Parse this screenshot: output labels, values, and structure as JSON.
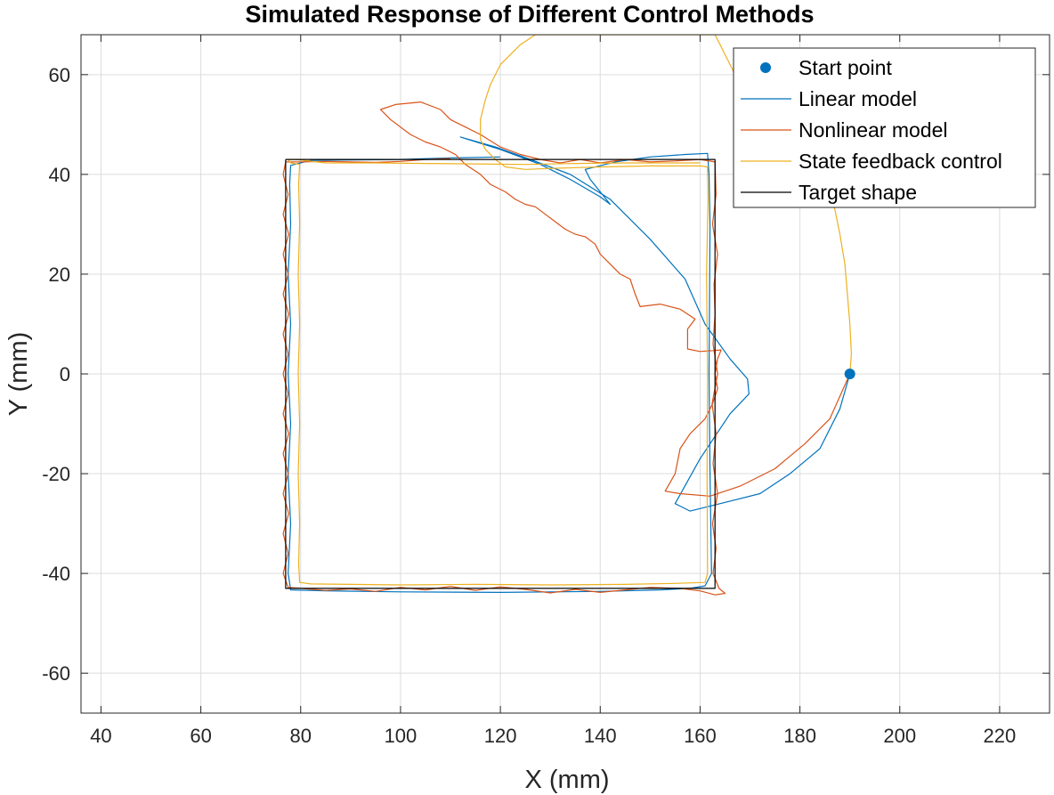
{
  "chart_data": {
    "type": "line",
    "title": "Simulated Response of Different Control Methods",
    "xlabel": "X (mm)",
    "ylabel": "Y (mm)",
    "xlim": [
      36,
      230
    ],
    "ylim": [
      -68,
      68
    ],
    "xticks": [
      40,
      60,
      80,
      100,
      120,
      140,
      160,
      180,
      200,
      220
    ],
    "yticks": [
      -60,
      -40,
      -20,
      0,
      20,
      40,
      60
    ],
    "grid": true,
    "legend_position": "top-right",
    "legend": [
      {
        "name": "Start point",
        "color": "#0072BD",
        "marker": "dot"
      },
      {
        "name": "Linear model",
        "color": "#0072BD",
        "marker": "line"
      },
      {
        "name": "Nonlinear model",
        "color": "#D95319",
        "marker": "line"
      },
      {
        "name": "State feedback control",
        "color": "#EDB120",
        "marker": "line"
      },
      {
        "name": "Target shape",
        "color": "#000000",
        "marker": "line"
      }
    ],
    "start_point": {
      "x": 190,
      "y": 0
    },
    "series": [
      {
        "name": "Linear model",
        "color": "#0072BD",
        "points": [
          [
            190,
            0
          ],
          [
            188,
            -7
          ],
          [
            184,
            -15
          ],
          [
            178,
            -20
          ],
          [
            172,
            -24
          ],
          [
            166,
            -25.5
          ],
          [
            158,
            -27.5
          ],
          [
            155,
            -26
          ],
          [
            160,
            -17
          ],
          [
            166,
            -8
          ],
          [
            169.8,
            -4
          ],
          [
            169.5,
            -1
          ],
          [
            166,
            3
          ],
          [
            161,
            10
          ],
          [
            157,
            19
          ],
          [
            150,
            27
          ],
          [
            142,
            35
          ],
          [
            134,
            40
          ],
          [
            126,
            43
          ],
          [
            119,
            45.5
          ],
          [
            112,
            47.5
          ],
          [
            120,
            45
          ],
          [
            128,
            42
          ],
          [
            134,
            39
          ],
          [
            140,
            35.5
          ],
          [
            142,
            34
          ],
          [
            138,
            39
          ],
          [
            137,
            41
          ],
          [
            143,
            42.5
          ],
          [
            150,
            43.5
          ],
          [
            157,
            44
          ],
          [
            161.5,
            44.2
          ],
          [
            161.8,
            40
          ],
          [
            162,
            30
          ],
          [
            161.8,
            0
          ],
          [
            162,
            -20
          ],
          [
            162.3,
            -40
          ],
          [
            161,
            -42.5
          ],
          [
            158,
            -43
          ],
          [
            152,
            -43.3
          ],
          [
            140,
            -43.6
          ],
          [
            120,
            -43.8
          ],
          [
            100,
            -43.7
          ],
          [
            85,
            -43.5
          ],
          [
            78,
            -43.3
          ],
          [
            77.5,
            -40
          ],
          [
            78,
            -30
          ],
          [
            77.5,
            -20
          ],
          [
            78,
            -10
          ],
          [
            77.5,
            0
          ],
          [
            78,
            10
          ],
          [
            77.5,
            20
          ],
          [
            78,
            30
          ],
          [
            77.8,
            38
          ],
          [
            78,
            41.8
          ],
          [
            82,
            42.8
          ],
          [
            90,
            42.9
          ],
          [
            100,
            43
          ],
          [
            110,
            43.3
          ],
          [
            120,
            43.5
          ]
        ]
      },
      {
        "name": "Nonlinear model",
        "color": "#D95319",
        "points": [
          [
            190,
            0
          ],
          [
            186,
            -9
          ],
          [
            181,
            -14
          ],
          [
            175,
            -19
          ],
          [
            168,
            -22.5
          ],
          [
            162,
            -24.5
          ],
          [
            156,
            -24
          ],
          [
            153,
            -23.5
          ],
          [
            155,
            -20
          ],
          [
            156,
            -15
          ],
          [
            158,
            -12
          ],
          [
            161,
            -9
          ],
          [
            162.5,
            -6
          ],
          [
            163.5,
            -3
          ],
          [
            163,
            0
          ],
          [
            163.5,
            3
          ],
          [
            164.2,
            4.8
          ],
          [
            160,
            4.5
          ],
          [
            157.5,
            5
          ],
          [
            157.5,
            9
          ],
          [
            159,
            11
          ],
          [
            156,
            13
          ],
          [
            152,
            14
          ],
          [
            148,
            13.5
          ],
          [
            147,
            16
          ],
          [
            146,
            19
          ],
          [
            144,
            20
          ],
          [
            142,
            22
          ],
          [
            140,
            24
          ],
          [
            139,
            26
          ],
          [
            137,
            27.5
          ],
          [
            135,
            28
          ],
          [
            133,
            29
          ],
          [
            131,
            30.5
          ],
          [
            129,
            32
          ],
          [
            127,
            33.5
          ],
          [
            125,
            34
          ],
          [
            123,
            35
          ],
          [
            121,
            36.5
          ],
          [
            118,
            38
          ],
          [
            116,
            40
          ],
          [
            113,
            42
          ],
          [
            111,
            44
          ],
          [
            108,
            45.5
          ],
          [
            105,
            46.5
          ],
          [
            102,
            48
          ],
          [
            98,
            51
          ],
          [
            96,
            53
          ],
          [
            99,
            54
          ],
          [
            104,
            54.5
          ],
          [
            108,
            53
          ],
          [
            110,
            51
          ],
          [
            113,
            49.5
          ],
          [
            116,
            48
          ],
          [
            120,
            45.5
          ],
          [
            124,
            44
          ],
          [
            128,
            43
          ],
          [
            132,
            42.3
          ],
          [
            136,
            43
          ],
          [
            140,
            42.3
          ],
          [
            145,
            43
          ],
          [
            150,
            42.5
          ],
          [
            155,
            42.7
          ],
          [
            160,
            43
          ],
          [
            163,
            42.5
          ],
          [
            163.2,
            36
          ],
          [
            162.5,
            30
          ],
          [
            163.5,
            24
          ],
          [
            162.8,
            18
          ],
          [
            163,
            12
          ],
          [
            162.6,
            6
          ],
          [
            163.5,
            0
          ],
          [
            162.4,
            -6
          ],
          [
            163.2,
            -12
          ],
          [
            162.6,
            -18
          ],
          [
            163.5,
            -24
          ],
          [
            162.5,
            -30
          ],
          [
            163.2,
            -35
          ],
          [
            162.6,
            -40
          ],
          [
            163.8,
            -43
          ],
          [
            165,
            -44
          ],
          [
            163,
            -44.3
          ],
          [
            160,
            -43.5
          ],
          [
            156,
            -43
          ],
          [
            150,
            -42.8
          ],
          [
            145,
            -43.3
          ],
          [
            140,
            -43.8
          ],
          [
            135,
            -43.2
          ],
          [
            130,
            -43.9
          ],
          [
            125,
            -43.2
          ],
          [
            120,
            -42.7
          ],
          [
            115,
            -43.4
          ],
          [
            110,
            -42.6
          ],
          [
            105,
            -43.3
          ],
          [
            100,
            -42.8
          ],
          [
            95,
            -43.6
          ],
          [
            90,
            -43.1
          ],
          [
            85,
            -43.4
          ],
          [
            80,
            -43
          ],
          [
            77.5,
            -42.8
          ],
          [
            76.5,
            -40
          ],
          [
            77.5,
            -36
          ],
          [
            76.5,
            -32
          ],
          [
            77.6,
            -28
          ],
          [
            76.5,
            -24
          ],
          [
            77.5,
            -20
          ],
          [
            76.5,
            -16
          ],
          [
            77.6,
            -12
          ],
          [
            76.5,
            -8
          ],
          [
            77.5,
            -4
          ],
          [
            76.5,
            0
          ],
          [
            77.5,
            4
          ],
          [
            76.5,
            8
          ],
          [
            77.6,
            12
          ],
          [
            76.5,
            16
          ],
          [
            77.5,
            20
          ],
          [
            76.5,
            24
          ],
          [
            77.6,
            28
          ],
          [
            76.5,
            32
          ],
          [
            77.5,
            36
          ],
          [
            76.5,
            40
          ],
          [
            77,
            42.5
          ],
          [
            80,
            42.5
          ],
          [
            85,
            42.6
          ],
          [
            90,
            42.5
          ],
          [
            95,
            42.4
          ],
          [
            100,
            42.6
          ],
          [
            105,
            43
          ],
          [
            110,
            43.2
          ]
        ]
      },
      {
        "name": "State feedback control",
        "color": "#EDB120",
        "points": [
          [
            190,
            0
          ],
          [
            190.3,
            4
          ],
          [
            190,
            10
          ],
          [
            189.5,
            16
          ],
          [
            189,
            22
          ],
          [
            188,
            28
          ],
          [
            187,
            33
          ],
          [
            185,
            38
          ],
          [
            182,
            43
          ],
          [
            180,
            45.5
          ],
          [
            178,
            47
          ],
          [
            175,
            50
          ],
          [
            171,
            54
          ],
          [
            168,
            58
          ],
          [
            166,
            62
          ],
          [
            165,
            64
          ],
          [
            164,
            66
          ],
          [
            163,
            68
          ],
          [
            150,
            68
          ],
          [
            131,
            68
          ],
          [
            127,
            68
          ],
          [
            124,
            66
          ],
          [
            122,
            64
          ],
          [
            120,
            62
          ],
          [
            118,
            58
          ],
          [
            117,
            55
          ],
          [
            116,
            51
          ],
          [
            116,
            47
          ],
          [
            117,
            45
          ],
          [
            119,
            43
          ],
          [
            121,
            41.5
          ],
          [
            125,
            41
          ],
          [
            130,
            41.2
          ],
          [
            140,
            41.5
          ],
          [
            150,
            41.7
          ],
          [
            160,
            41.7
          ],
          [
            161.5,
            41.5
          ],
          [
            161.6,
            35
          ],
          [
            161.3,
            20
          ],
          [
            161.5,
            0
          ],
          [
            161.4,
            -20
          ],
          [
            161.5,
            -40
          ],
          [
            161,
            -41.8
          ],
          [
            155,
            -42
          ],
          [
            145,
            -42.2
          ],
          [
            130,
            -42.3
          ],
          [
            115,
            -42.2
          ],
          [
            100,
            -42.3
          ],
          [
            90,
            -42.2
          ],
          [
            82,
            -42.1
          ],
          [
            79.8,
            -41.8
          ],
          [
            79.6,
            -38
          ],
          [
            79.8,
            -30
          ],
          [
            79.5,
            -20
          ],
          [
            79.8,
            -10
          ],
          [
            79.5,
            0
          ],
          [
            79.8,
            10
          ],
          [
            79.5,
            20
          ],
          [
            79.8,
            30
          ],
          [
            79.6,
            38
          ],
          [
            79.8,
            42
          ],
          [
            78,
            42.3
          ],
          [
            77.5,
            43
          ],
          [
            79,
            43
          ],
          [
            85,
            42.3
          ],
          [
            95,
            42.3
          ],
          [
            105,
            42.2
          ],
          [
            115,
            42.1
          ],
          [
            125,
            42
          ],
          [
            135,
            42.2
          ],
          [
            145,
            42.3
          ],
          [
            160,
            42.3
          ]
        ]
      },
      {
        "name": "Target shape",
        "color": "#000000",
        "points": [
          [
            77,
            43
          ],
          [
            163,
            43
          ],
          [
            163,
            -43
          ],
          [
            77,
            -43
          ],
          [
            77,
            43
          ]
        ]
      }
    ]
  }
}
